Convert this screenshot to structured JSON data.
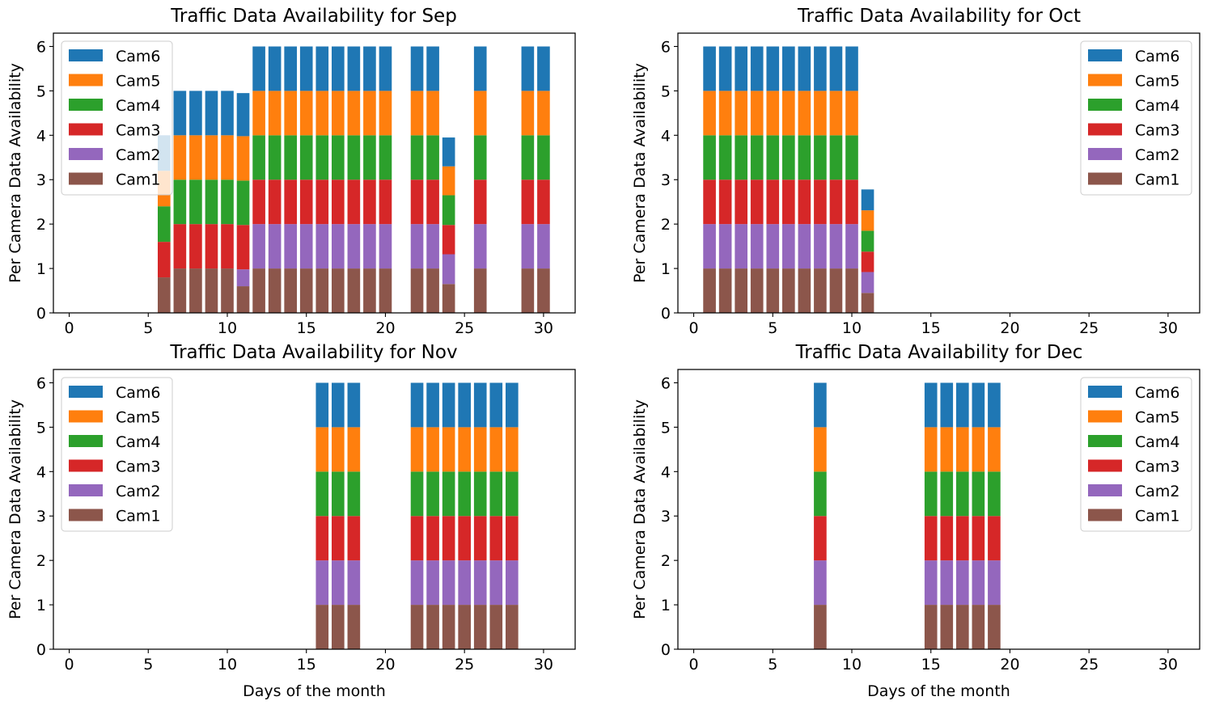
{
  "chart_data": [
    {
      "type": "bar",
      "stacked": true,
      "title": "Traffic Data Availability for Sep",
      "xlabel": "",
      "ylabel": "Per Camera Data Availability",
      "xlim": [
        -1,
        32
      ],
      "ylim": [
        0,
        6.3
      ],
      "xticks": [
        "0",
        "5",
        "10",
        "15",
        "20",
        "25",
        "30"
      ],
      "yticks": [
        "0",
        "1",
        "2",
        "3",
        "4",
        "5",
        "6"
      ],
      "legend_position": "upper-left",
      "x": [
        6,
        7,
        8,
        9,
        10,
        11,
        12,
        13,
        14,
        15,
        16,
        17,
        18,
        19,
        20,
        22,
        23,
        24,
        26,
        29,
        30
      ],
      "series": [
        {
          "name": "Cam1",
          "color": "#8c564b",
          "values": [
            0.8,
            1,
            1,
            1,
            1,
            0.6,
            1,
            1,
            1,
            1,
            1,
            1,
            1,
            1,
            1,
            1,
            1,
            0.65,
            1,
            1,
            1
          ]
        },
        {
          "name": "Cam2",
          "color": "#9467bd",
          "values": [
            0,
            0,
            0,
            0,
            0,
            0.38,
            1,
            1,
            1,
            1,
            1,
            1,
            1,
            1,
            1,
            1,
            1,
            0.67,
            1,
            1,
            1
          ]
        },
        {
          "name": "Cam3",
          "color": "#d62728",
          "values": [
            0.8,
            1,
            1,
            1,
            1,
            1,
            1,
            1,
            1,
            1,
            1,
            1,
            1,
            1,
            1,
            1,
            1,
            0.66,
            1,
            1,
            1
          ]
        },
        {
          "name": "Cam4",
          "color": "#2ca02c",
          "values": [
            0.8,
            1,
            1,
            1,
            1,
            1,
            1,
            1,
            1,
            1,
            1,
            1,
            1,
            1,
            1,
            1,
            1,
            0.67,
            1,
            1,
            1
          ]
        },
        {
          "name": "Cam5",
          "color": "#ff7f0e",
          "values": [
            0.8,
            1,
            1,
            1,
            1,
            1,
            1,
            1,
            1,
            1,
            1,
            1,
            1,
            1,
            1,
            1,
            1,
            0.65,
            1,
            1,
            1
          ]
        },
        {
          "name": "Cam6",
          "color": "#1f77b4",
          "values": [
            0.8,
            1,
            1,
            1,
            1,
            0.97,
            1,
            1,
            1,
            1,
            1,
            1,
            1,
            1,
            1,
            1,
            1,
            0.65,
            1,
            1,
            1
          ]
        }
      ]
    },
    {
      "type": "bar",
      "stacked": true,
      "title": "Traffic Data Availability for Oct",
      "xlabel": "",
      "ylabel": "Per Camera Data Availability",
      "xlim": [
        -1,
        32
      ],
      "ylim": [
        0,
        6.3
      ],
      "xticks": [
        "0",
        "5",
        "10",
        "15",
        "20",
        "25",
        "30"
      ],
      "yticks": [
        "0",
        "1",
        "2",
        "3",
        "4",
        "5",
        "6"
      ],
      "legend_position": "upper-right",
      "x": [
        1,
        2,
        3,
        4,
        5,
        6,
        7,
        8,
        9,
        10,
        11
      ],
      "series": [
        {
          "name": "Cam1",
          "color": "#8c564b",
          "values": [
            1,
            1,
            1,
            1,
            1,
            1,
            1,
            1,
            1,
            1,
            0.45
          ]
        },
        {
          "name": "Cam2",
          "color": "#9467bd",
          "values": [
            1,
            1,
            1,
            1,
            1,
            1,
            1,
            1,
            1,
            1,
            0.47
          ]
        },
        {
          "name": "Cam3",
          "color": "#d62728",
          "values": [
            1,
            1,
            1,
            1,
            1,
            1,
            1,
            1,
            1,
            1,
            0.46
          ]
        },
        {
          "name": "Cam4",
          "color": "#2ca02c",
          "values": [
            1,
            1,
            1,
            1,
            1,
            1,
            1,
            1,
            1,
            1,
            0.47
          ]
        },
        {
          "name": "Cam5",
          "color": "#ff7f0e",
          "values": [
            1,
            1,
            1,
            1,
            1,
            1,
            1,
            1,
            1,
            1,
            0.46
          ]
        },
        {
          "name": "Cam6",
          "color": "#1f77b4",
          "values": [
            1,
            1,
            1,
            1,
            1,
            1,
            1,
            1,
            1,
            1,
            0.47
          ]
        }
      ]
    },
    {
      "type": "bar",
      "stacked": true,
      "title": "Traffic Data Availability for Nov",
      "xlabel": "Days of the month",
      "ylabel": "Per Camera Data Availability",
      "xlim": [
        -1,
        32
      ],
      "ylim": [
        0,
        6.3
      ],
      "xticks": [
        "0",
        "5",
        "10",
        "15",
        "20",
        "25",
        "30"
      ],
      "yticks": [
        "0",
        "1",
        "2",
        "3",
        "4",
        "5",
        "6"
      ],
      "legend_position": "upper-left",
      "x": [
        16,
        17,
        18,
        22,
        23,
        24,
        25,
        26,
        27,
        28
      ],
      "series": [
        {
          "name": "Cam1",
          "color": "#8c564b",
          "values": [
            1,
            1,
            1,
            1,
            1,
            1,
            1,
            1,
            1,
            1
          ]
        },
        {
          "name": "Cam2",
          "color": "#9467bd",
          "values": [
            1,
            1,
            1,
            1,
            1,
            1,
            1,
            1,
            1,
            1
          ]
        },
        {
          "name": "Cam3",
          "color": "#d62728",
          "values": [
            1,
            1,
            1,
            1,
            1,
            1,
            1,
            1,
            1,
            1
          ]
        },
        {
          "name": "Cam4",
          "color": "#2ca02c",
          "values": [
            1,
            1,
            1,
            1,
            1,
            1,
            1,
            1,
            1,
            1
          ]
        },
        {
          "name": "Cam5",
          "color": "#ff7f0e",
          "values": [
            1,
            1,
            1,
            1,
            1,
            1,
            1,
            1,
            1,
            1
          ]
        },
        {
          "name": "Cam6",
          "color": "#1f77b4",
          "values": [
            1,
            1,
            1,
            1,
            1,
            1,
            1,
            1,
            1,
            1
          ]
        }
      ]
    },
    {
      "type": "bar",
      "stacked": true,
      "title": "Traffic Data Availability for Dec",
      "xlabel": "Days of the month",
      "ylabel": "Per Camera Data Availability",
      "xlim": [
        -1,
        32
      ],
      "ylim": [
        0,
        6.3
      ],
      "xticks": [
        "0",
        "5",
        "10",
        "15",
        "20",
        "25",
        "30"
      ],
      "yticks": [
        "0",
        "1",
        "2",
        "3",
        "4",
        "5",
        "6"
      ],
      "legend_position": "upper-right",
      "x": [
        8,
        15,
        16,
        17,
        18,
        19
      ],
      "series": [
        {
          "name": "Cam1",
          "color": "#8c564b",
          "values": [
            1,
            1,
            1,
            1,
            1,
            1
          ]
        },
        {
          "name": "Cam2",
          "color": "#9467bd",
          "values": [
            1,
            1,
            1,
            1,
            1,
            1
          ]
        },
        {
          "name": "Cam3",
          "color": "#d62728",
          "values": [
            1,
            1,
            1,
            1,
            1,
            1
          ]
        },
        {
          "name": "Cam4",
          "color": "#2ca02c",
          "values": [
            1,
            1,
            1,
            1,
            1,
            1
          ]
        },
        {
          "name": "Cam5",
          "color": "#ff7f0e",
          "values": [
            1,
            1,
            1,
            1,
            1,
            1
          ]
        },
        {
          "name": "Cam6",
          "color": "#1f77b4",
          "values": [
            1,
            1,
            1,
            1,
            1,
            1
          ]
        }
      ]
    }
  ]
}
